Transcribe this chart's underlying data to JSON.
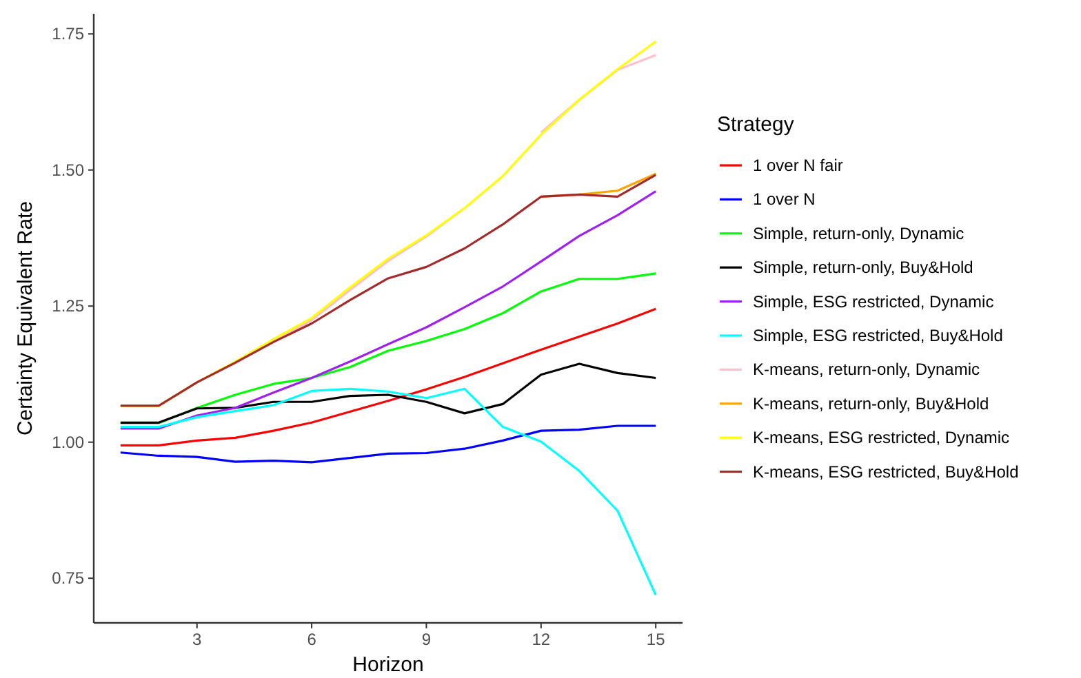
{
  "chart_data": {
    "type": "line",
    "xlabel": "Horizon",
    "ylabel": "Certainty Equivalent Rate",
    "legend_title": "Strategy",
    "legend": "right",
    "grid": false,
    "x": [
      1,
      2,
      3,
      4,
      5,
      6,
      7,
      8,
      9,
      10,
      11,
      12,
      13,
      14,
      15
    ],
    "xlim": [
      0.3,
      15.7
    ],
    "xticks": [
      3,
      6,
      9,
      12,
      15
    ],
    "ylim": [
      0.668,
      1.787
    ],
    "yticks": [
      {
        "value": 0.75,
        "label": "0.75"
      },
      {
        "value": 1,
        "label": "1.00"
      },
      {
        "value": 1.25,
        "label": "1.25"
      },
      {
        "value": 1.5,
        "label": "1.50"
      },
      {
        "value": 1.75,
        "label": "1.75"
      }
    ],
    "series": [
      {
        "name": "1 over N fair",
        "color": "#ff0000",
        "values": [
          0.994,
          0.994,
          1.003,
          1.008,
          1.021,
          1.036,
          1.056,
          1.076,
          1.097,
          1.12,
          1.145,
          1.17,
          1.194,
          1.218,
          1.245
        ]
      },
      {
        "name": "1 over N",
        "color": "#0000ff",
        "values": [
          0.981,
          0.975,
          0.973,
          0.964,
          0.966,
          0.963,
          0.971,
          0.979,
          0.98,
          0.988,
          1.003,
          1.021,
          1.023,
          1.03,
          1.03
        ]
      },
      {
        "name": "Simple, return-only, Dynamic",
        "color": "#00ff00",
        "values": [
          1.035,
          1.035,
          1.063,
          1.087,
          1.107,
          1.118,
          1.138,
          1.168,
          1.186,
          1.208,
          1.237,
          1.277,
          1.3,
          1.3,
          1.31
        ]
      },
      {
        "name": "Simple, return-only, Buy&Hold",
        "color": "#000000",
        "values": [
          1.036,
          1.036,
          1.062,
          1.063,
          1.074,
          1.074,
          1.085,
          1.087,
          1.074,
          1.053,
          1.07,
          1.124,
          1.144,
          1.127,
          1.118
        ]
      },
      {
        "name": "Simple, ESG restricted, Dynamic",
        "color": "#a020f0",
        "values": [
          1.025,
          1.025,
          1.049,
          1.063,
          1.091,
          1.118,
          1.148,
          1.18,
          1.211,
          1.248,
          1.286,
          1.332,
          1.379,
          1.417,
          1.461
        ]
      },
      {
        "name": "Simple, ESG restricted, Buy&Hold",
        "color": "#00ffff",
        "values": [
          1.028,
          1.028,
          1.046,
          1.057,
          1.068,
          1.094,
          1.098,
          1.093,
          1.081,
          1.098,
          1.028,
          1.001,
          0.947,
          0.874,
          0.719
        ]
      },
      {
        "name": "K-means, return-only, Dynamic",
        "color": "#ffc0cb",
        "values": [
          1.067,
          1.067,
          1.11,
          1.145,
          1.185,
          1.224,
          1.279,
          1.333,
          1.378,
          1.43,
          null,
          1.569,
          1.629,
          1.684,
          1.711
        ]
      },
      {
        "name": "K-means, return-only, Buy&Hold",
        "color": "#ffa500",
        "values": [
          null,
          null,
          null,
          null,
          null,
          null,
          null,
          null,
          null,
          null,
          null,
          1.451,
          1.455,
          1.462,
          1.493
        ]
      },
      {
        "name": "K-means, ESG restricted, Dynamic",
        "color": "#ffff00",
        "values": [
          1.067,
          1.067,
          1.11,
          1.148,
          1.189,
          1.228,
          1.284,
          1.337,
          1.38,
          1.43,
          1.489,
          1.565,
          1.629,
          1.685,
          1.736
        ]
      },
      {
        "name": "K-means, ESG restricted, Buy&Hold",
        "color": "#a52a2a",
        "values": [
          1.067,
          1.067,
          1.11,
          1.146,
          1.184,
          1.218,
          1.261,
          1.301,
          1.322,
          1.356,
          1.4,
          1.451,
          1.455,
          1.451,
          1.491
        ]
      }
    ]
  }
}
